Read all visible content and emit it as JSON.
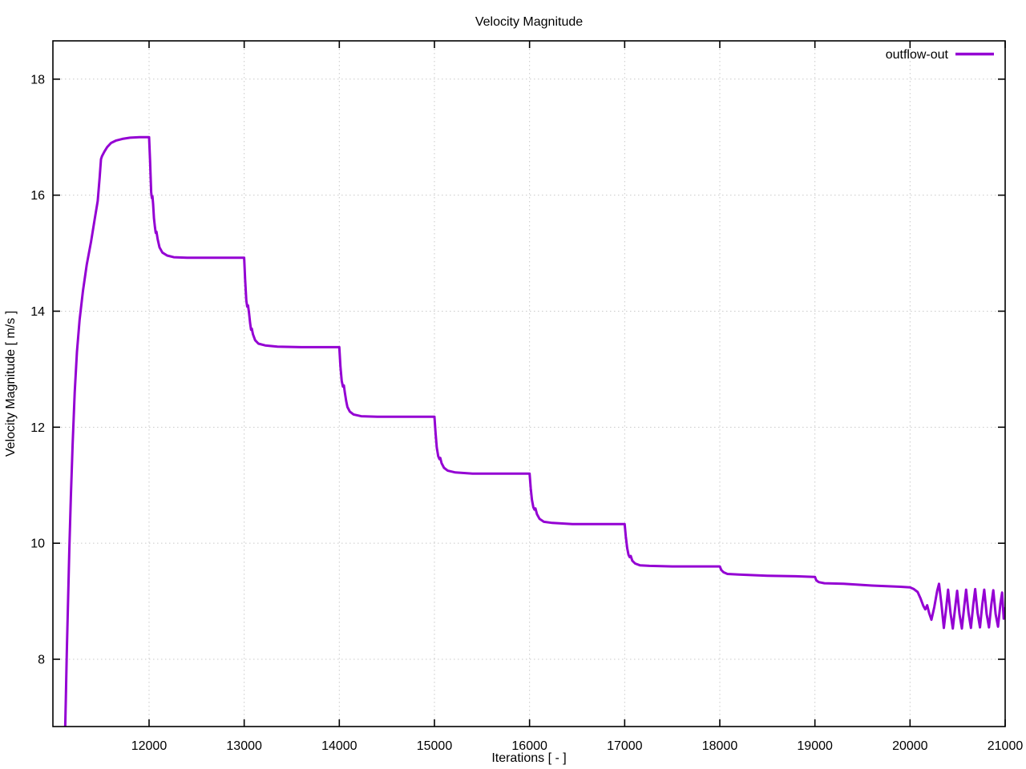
{
  "colors": {
    "background": "#ffffff",
    "border": "#000000",
    "grid": "#c9c9c9",
    "text": "#000000",
    "accent": "#9400d3"
  },
  "chart_data": {
    "type": "line",
    "title": "Velocity Magnitude",
    "xlabel": "Iterations [ - ]",
    "ylabel": "Velocity Magnitude [ m/s ]",
    "grid": "dotted",
    "legend": {
      "position": "top-right-inside",
      "entries": [
        {
          "label": "outflow-out",
          "color": "#9400d3"
        }
      ]
    },
    "x_range": [
      10989,
      21000
    ],
    "y_range": [
      6.84,
      18.66
    ],
    "x_ticks": {
      "values": [
        12000,
        13000,
        14000,
        15000,
        16000,
        17000,
        18000,
        19000,
        20000,
        21000
      ],
      "labels": [
        "12000",
        "13000",
        "14000",
        "15000",
        "16000",
        "17000",
        "18000",
        "19000",
        "20000",
        "21000"
      ]
    },
    "y_ticks": {
      "values": [
        8,
        10,
        12,
        14,
        16,
        18
      ],
      "labels": [
        "8",
        "10",
        "12",
        "14",
        "16",
        "18"
      ]
    },
    "series": [
      {
        "name": "outflow-out",
        "color": "#9400d3",
        "line_width": 3,
        "points": [
          [
            11118,
            6.8
          ],
          [
            11125,
            7.3
          ],
          [
            11135,
            8.1
          ],
          [
            11148,
            9.0
          ],
          [
            11162,
            9.9
          ],
          [
            11178,
            10.8
          ],
          [
            11196,
            11.7
          ],
          [
            11218,
            12.6
          ],
          [
            11242,
            13.3
          ],
          [
            11270,
            13.85
          ],
          [
            11305,
            14.35
          ],
          [
            11345,
            14.8
          ],
          [
            11390,
            15.2
          ],
          [
            11430,
            15.6
          ],
          [
            11460,
            15.9
          ],
          [
            11480,
            16.3
          ],
          [
            11495,
            16.62
          ],
          [
            11505,
            16.67
          ],
          [
            11530,
            16.75
          ],
          [
            11560,
            16.83
          ],
          [
            11600,
            16.9
          ],
          [
            11650,
            16.94
          ],
          [
            11720,
            16.97
          ],
          [
            11800,
            16.99
          ],
          [
            11900,
            17.0
          ],
          [
            12000,
            17.0
          ],
          [
            12010,
            16.6
          ],
          [
            12022,
            16.05
          ],
          [
            12030,
            15.95
          ],
          [
            12036,
            15.98
          ],
          [
            12042,
            15.85
          ],
          [
            12052,
            15.6
          ],
          [
            12062,
            15.45
          ],
          [
            12070,
            15.35
          ],
          [
            12078,
            15.37
          ],
          [
            12090,
            15.24
          ],
          [
            12110,
            15.1
          ],
          [
            12140,
            15.01
          ],
          [
            12190,
            14.96
          ],
          [
            12260,
            14.93
          ],
          [
            12400,
            14.92
          ],
          [
            12650,
            14.92
          ],
          [
            12900,
            14.92
          ],
          [
            13000,
            14.92
          ],
          [
            13010,
            14.55
          ],
          [
            13022,
            14.18
          ],
          [
            13032,
            14.08
          ],
          [
            13040,
            14.1
          ],
          [
            13050,
            13.98
          ],
          [
            13062,
            13.8
          ],
          [
            13072,
            13.68
          ],
          [
            13080,
            13.7
          ],
          [
            13092,
            13.6
          ],
          [
            13115,
            13.5
          ],
          [
            13150,
            13.44
          ],
          [
            13220,
            13.41
          ],
          [
            13350,
            13.39
          ],
          [
            13600,
            13.38
          ],
          [
            13850,
            13.38
          ],
          [
            14000,
            13.38
          ],
          [
            14012,
            13.05
          ],
          [
            14025,
            12.8
          ],
          [
            14038,
            12.7
          ],
          [
            14048,
            12.72
          ],
          [
            14058,
            12.6
          ],
          [
            14072,
            12.45
          ],
          [
            14085,
            12.35
          ],
          [
            14110,
            12.27
          ],
          [
            14150,
            12.22
          ],
          [
            14230,
            12.19
          ],
          [
            14400,
            12.18
          ],
          [
            14700,
            12.18
          ],
          [
            15000,
            12.18
          ],
          [
            15012,
            11.9
          ],
          [
            15025,
            11.65
          ],
          [
            15040,
            11.5
          ],
          [
            15052,
            11.45
          ],
          [
            15062,
            11.47
          ],
          [
            15075,
            11.38
          ],
          [
            15100,
            11.3
          ],
          [
            15140,
            11.25
          ],
          [
            15220,
            11.22
          ],
          [
            15400,
            11.2
          ],
          [
            15700,
            11.2
          ],
          [
            16000,
            11.2
          ],
          [
            16012,
            10.95
          ],
          [
            16025,
            10.75
          ],
          [
            16040,
            10.62
          ],
          [
            16052,
            10.58
          ],
          [
            16062,
            10.6
          ],
          [
            16078,
            10.5
          ],
          [
            16105,
            10.42
          ],
          [
            16150,
            10.37
          ],
          [
            16240,
            10.35
          ],
          [
            16450,
            10.33
          ],
          [
            16750,
            10.33
          ],
          [
            17000,
            10.33
          ],
          [
            17012,
            10.12
          ],
          [
            17026,
            9.92
          ],
          [
            17040,
            9.8
          ],
          [
            17052,
            9.76
          ],
          [
            17064,
            9.78
          ],
          [
            17080,
            9.7
          ],
          [
            17110,
            9.65
          ],
          [
            17160,
            9.62
          ],
          [
            17260,
            9.61
          ],
          [
            17500,
            9.6
          ],
          [
            17800,
            9.6
          ],
          [
            18000,
            9.6
          ],
          [
            18015,
            9.54
          ],
          [
            18040,
            9.5
          ],
          [
            18080,
            9.47
          ],
          [
            18200,
            9.46
          ],
          [
            18500,
            9.44
          ],
          [
            18800,
            9.43
          ],
          [
            19000,
            9.42
          ],
          [
            19015,
            9.36
          ],
          [
            19040,
            9.33
          ],
          [
            19100,
            9.31
          ],
          [
            19300,
            9.3
          ],
          [
            19600,
            9.27
          ],
          [
            19900,
            9.25
          ],
          [
            20000,
            9.24
          ],
          [
            20040,
            9.21
          ],
          [
            20080,
            9.16
          ],
          [
            20110,
            9.05
          ],
          [
            20140,
            8.92
          ],
          [
            20160,
            8.86
          ],
          [
            20180,
            8.93
          ],
          [
            20200,
            8.8
          ],
          [
            20225,
            8.68
          ],
          [
            20255,
            8.9
          ],
          [
            20285,
            9.18
          ],
          [
            20305,
            9.3
          ],
          [
            20330,
            8.95
          ],
          [
            20355,
            8.54
          ],
          [
            20380,
            8.88
          ],
          [
            20400,
            9.2
          ],
          [
            20425,
            8.8
          ],
          [
            20450,
            8.53
          ],
          [
            20475,
            8.9
          ],
          [
            20495,
            9.18
          ],
          [
            20520,
            8.78
          ],
          [
            20545,
            8.53
          ],
          [
            20570,
            8.92
          ],
          [
            20590,
            9.2
          ],
          [
            20615,
            8.8
          ],
          [
            20640,
            8.54
          ],
          [
            20665,
            8.94
          ],
          [
            20685,
            9.21
          ],
          [
            20710,
            8.8
          ],
          [
            20735,
            8.55
          ],
          [
            20760,
            8.95
          ],
          [
            20780,
            9.2
          ],
          [
            20805,
            8.78
          ],
          [
            20830,
            8.55
          ],
          [
            20855,
            8.95
          ],
          [
            20875,
            9.19
          ],
          [
            20900,
            8.78
          ],
          [
            20925,
            8.56
          ],
          [
            20950,
            8.96
          ],
          [
            20968,
            9.15
          ],
          [
            20985,
            8.7
          ],
          [
            21000,
            8.88
          ]
        ]
      }
    ]
  }
}
